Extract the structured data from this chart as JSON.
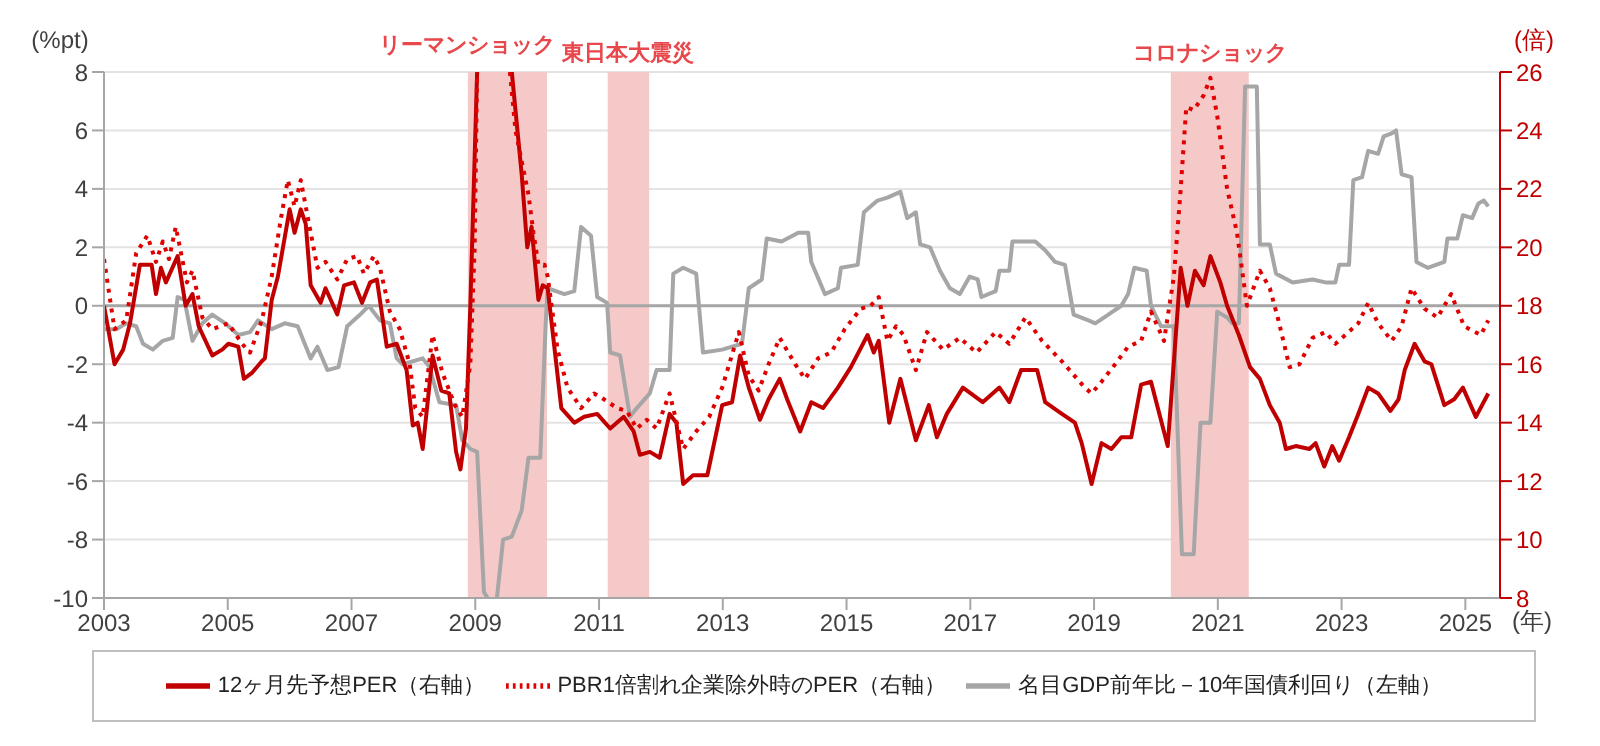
{
  "chart_data": {
    "type": "line",
    "ylabel": "(%pt)",
    "y2label": "(倍)",
    "xlabel": "(年)",
    "xlim": [
      2003,
      2025.56
    ],
    "xticks": [
      2003,
      2005,
      2007,
      2009,
      2011,
      2013,
      2015,
      2017,
      2019,
      2021,
      2023,
      2025
    ],
    "ylim": [
      -10,
      8
    ],
    "yticks": [
      -10,
      -8,
      -6,
      -4,
      -2,
      0,
      2,
      4,
      6,
      8
    ],
    "y2lim": [
      8,
      26
    ],
    "y2ticks": [
      8,
      10,
      12,
      14,
      16,
      18,
      20,
      22,
      24,
      26
    ],
    "grid": "y",
    "legend": "bottom",
    "marker": "none",
    "ref_lines": [
      {
        "axis": "y",
        "value": 0,
        "color": "#a6a6a6"
      }
    ],
    "bands": [
      {
        "axis": "x",
        "from": 2008.88,
        "to": 2010.16,
        "label": "リーマンショック",
        "color": "#f6c9c9"
      },
      {
        "axis": "x",
        "from": 2011.14,
        "to": 2011.81,
        "label": "東日本大震災",
        "color": "#f6c9c9"
      },
      {
        "axis": "x",
        "from": 2020.24,
        "to": 2021.5,
        "label": "コロナショック",
        "color": "#f6c9c9"
      }
    ],
    "series": [
      {
        "name": "名目GDP前年比－10年国債利回り（左軸）",
        "color": "#a6a6a6",
        "line_style": "solid",
        "x": [
          2003.0,
          2003.2,
          2003.36,
          2003.52,
          2003.63,
          2003.79,
          2003.95,
          2004.11,
          2004.19,
          2004.3,
          2004.43,
          2004.59,
          2004.75,
          2004.96,
          2005.17,
          2005.36,
          2005.49,
          2005.71,
          2005.92,
          2006.13,
          2006.34,
          2006.45,
          2006.61,
          2006.79,
          2006.93,
          2007.14,
          2007.28,
          2007.46,
          2007.62,
          2007.73,
          2007.83,
          2008.15,
          2008.26,
          2008.42,
          2008.69,
          2008.79,
          2008.92,
          2009.03,
          2009.14,
          2009.2,
          2009.28,
          2009.35,
          2009.45,
          2009.59,
          2009.75,
          2009.86,
          2010.05,
          2010.14,
          2010.17,
          2010.44,
          2010.6,
          2010.71,
          2010.87,
          2010.97,
          2011.13,
          2011.18,
          2011.34,
          2011.5,
          2011.61,
          2011.82,
          2011.93,
          2012.14,
          2012.2,
          2012.36,
          2012.57,
          2012.68,
          2012.99,
          2013.31,
          2013.42,
          2013.63,
          2013.71,
          2013.95,
          2014.22,
          2014.38,
          2014.43,
          2014.65,
          2014.86,
          2014.91,
          2015.18,
          2015.28,
          2015.5,
          2015.66,
          2015.87,
          2015.98,
          2016.12,
          2016.19,
          2016.35,
          2016.51,
          2016.67,
          2016.83,
          2016.99,
          2017.12,
          2017.18,
          2017.41,
          2017.47,
          2017.63,
          2017.68,
          2018.05,
          2018.21,
          2018.37,
          2018.53,
          2018.67,
          2018.91,
          2019.02,
          2019.23,
          2019.44,
          2019.55,
          2019.65,
          2019.85,
          2019.92,
          2020.08,
          2020.29,
          2020.42,
          2020.61,
          2020.72,
          2020.88,
          2020.99,
          2021.15,
          2021.23,
          2021.34,
          2021.44,
          2021.63,
          2021.68,
          2021.84,
          2021.94,
          2022.21,
          2022.53,
          2022.74,
          2022.9,
          2022.96,
          2023.12,
          2023.19,
          2023.33,
          2023.43,
          2023.59,
          2023.68,
          2023.81,
          2023.88,
          2023.97,
          2024.13,
          2024.21,
          2024.39,
          2024.66,
          2024.71,
          2024.87,
          2024.96,
          2025.11,
          2025.21,
          2025.3,
          2025.37
        ],
        "values": [
          -0.8,
          -0.8,
          -0.6,
          -0.7,
          -1.3,
          -1.5,
          -1.2,
          -1.1,
          0.3,
          0.2,
          -1.2,
          -0.6,
          -0.3,
          -0.6,
          -1.0,
          -0.9,
          -0.5,
          -0.8,
          -0.6,
          -0.7,
          -1.8,
          -1.4,
          -2.2,
          -2.1,
          -0.7,
          -0.3,
          0.0,
          -0.5,
          -0.6,
          -1.8,
          -2.0,
          -1.8,
          -2.1,
          -3.3,
          -3.4,
          -4.6,
          -4.9,
          -5.0,
          -9.8,
          -10.0,
          null,
          -10.0,
          -8.0,
          -7.9,
          -7.0,
          -5.2,
          -5.2,
          -0.5,
          0.6,
          0.4,
          0.5,
          2.7,
          2.4,
          0.3,
          0.1,
          -1.6,
          -1.7,
          -3.8,
          -3.5,
          -3.0,
          -2.2,
          -2.2,
          1.1,
          1.3,
          1.1,
          -1.6,
          -1.5,
          -1.3,
          0.6,
          0.9,
          2.3,
          2.2,
          2.5,
          2.5,
          1.5,
          0.4,
          0.6,
          1.3,
          1.4,
          3.2,
          3.6,
          3.7,
          3.9,
          3.0,
          3.2,
          2.1,
          2.0,
          1.2,
          0.6,
          0.4,
          1.0,
          0.9,
          0.3,
          0.5,
          1.2,
          1.2,
          2.2,
          2.2,
          1.9,
          1.5,
          1.4,
          -0.3,
          -0.5,
          -0.6,
          -0.3,
          0.0,
          0.4,
          1.3,
          1.2,
          0.0,
          -0.7,
          -0.7,
          -8.5,
          -8.5,
          -4.0,
          -4.0,
          -0.2,
          -0.4,
          -0.6,
          -0.6,
          7.5,
          7.5,
          2.1,
          2.1,
          1.1,
          0.8,
          0.9,
          0.8,
          0.8,
          1.4,
          1.4,
          4.3,
          4.4,
          5.3,
          5.2,
          5.8,
          5.9,
          6.0,
          4.5,
          4.4,
          1.5,
          1.3,
          1.5,
          2.3,
          2.3,
          3.1,
          3.0,
          3.5,
          3.6,
          3.4
        ]
      },
      {
        "name": "12ヶ月先予想PER（右軸）",
        "color": "#c00000",
        "line_style": "solid",
        "axis": "y2",
        "x": [
          2003.0,
          2003.17,
          2003.31,
          2003.42,
          2003.58,
          2003.77,
          2003.84,
          2003.92,
          2004.0,
          2004.19,
          2004.32,
          2004.43,
          2004.53,
          2004.75,
          2004.91,
          2005.01,
          2005.17,
          2005.26,
          2005.39,
          2005.55,
          2005.6,
          2005.71,
          2005.81,
          2006.0,
          2006.08,
          2006.18,
          2006.26,
          2006.34,
          2006.5,
          2006.58,
          2006.77,
          2006.88,
          2007.04,
          2007.17,
          2007.3,
          2007.41,
          2007.57,
          2007.73,
          2007.89,
          2007.99,
          2008.07,
          2008.15,
          2008.31,
          2008.45,
          2008.58,
          2008.69,
          2008.76,
          2008.85,
          2008.92,
          2009.03,
          2009.3,
          2009.59,
          2009.75,
          2009.84,
          2009.91,
          2010.02,
          2010.09,
          2010.17,
          2010.39,
          2010.6,
          2010.76,
          2010.97,
          2011.18,
          2011.4,
          2011.56,
          2011.66,
          2011.82,
          2011.98,
          2012.14,
          2012.25,
          2012.36,
          2012.52,
          2012.75,
          2012.99,
          2013.15,
          2013.28,
          2013.42,
          2013.6,
          2013.74,
          2013.92,
          2014.04,
          2014.25,
          2014.43,
          2014.62,
          2014.86,
          2015.07,
          2015.34,
          2015.44,
          2015.52,
          2015.69,
          2015.87,
          2016.12,
          2016.33,
          2016.46,
          2016.62,
          2016.88,
          2017.2,
          2017.47,
          2017.63,
          2017.82,
          2018.08,
          2018.21,
          2018.48,
          2018.69,
          2018.8,
          2018.96,
          2019.12,
          2019.28,
          2019.44,
          2019.6,
          2019.76,
          2019.92,
          2020.19,
          2020.4,
          2020.51,
          2020.63,
          2020.77,
          2020.88,
          2021.04,
          2021.15,
          2021.34,
          2021.52,
          2021.68,
          2021.84,
          2022.0,
          2022.1,
          2022.26,
          2022.48,
          2022.58,
          2022.72,
          2022.85,
          2022.96,
          2023.12,
          2023.27,
          2023.43,
          2023.59,
          2023.79,
          2023.92,
          2024.02,
          2024.18,
          2024.34,
          2024.45,
          2024.66,
          2024.82,
          2024.96,
          2025.17,
          2025.37
        ],
        "values": [
          18.0,
          16.0,
          16.5,
          17.4,
          19.4,
          19.4,
          18.4,
          19.3,
          18.8,
          19.7,
          18.0,
          18.4,
          17.3,
          16.3,
          16.5,
          16.7,
          16.6,
          15.5,
          15.7,
          16.1,
          16.2,
          18.2,
          19.0,
          21.3,
          20.5,
          21.3,
          20.8,
          18.7,
          18.1,
          18.6,
          17.7,
          18.7,
          18.8,
          18.1,
          18.8,
          18.9,
          16.6,
          16.7,
          15.8,
          13.9,
          14.0,
          13.1,
          16.3,
          15.1,
          15.0,
          13.0,
          12.4,
          13.8,
          18.0,
          26.0,
          null,
          26.0,
          22.5,
          20.0,
          20.7,
          18.2,
          18.7,
          18.6,
          14.5,
          14.0,
          14.2,
          14.3,
          13.8,
          14.2,
          13.7,
          12.9,
          13.0,
          12.8,
          14.3,
          14.0,
          11.9,
          12.2,
          12.2,
          14.6,
          14.7,
          16.3,
          15.2,
          14.1,
          14.8,
          15.5,
          14.8,
          13.7,
          14.7,
          14.5,
          15.2,
          15.9,
          17.0,
          16.4,
          16.8,
          14.0,
          15.5,
          13.4,
          14.6,
          13.5,
          14.3,
          15.2,
          14.7,
          15.2,
          14.7,
          15.8,
          15.8,
          14.7,
          14.3,
          14.0,
          13.3,
          11.9,
          13.3,
          13.1,
          13.5,
          13.5,
          15.3,
          15.4,
          13.2,
          19.3,
          18.0,
          19.2,
          18.7,
          19.7,
          18.8,
          18.0,
          17.0,
          15.9,
          15.5,
          14.6,
          14.0,
          13.1,
          13.2,
          13.1,
          13.3,
          12.5,
          13.2,
          12.7,
          13.5,
          14.3,
          15.2,
          15.0,
          14.4,
          14.8,
          15.8,
          16.7,
          16.1,
          16.0,
          14.6,
          14.8,
          15.2,
          14.2,
          15.0
        ]
      },
      {
        "name": "PBR1倍割れ企業除外時のPER（右軸）",
        "color": "#e00000",
        "line_style": "dotted",
        "axis": "y2",
        "x": [
          2003.0,
          2003.17,
          2003.36,
          2003.52,
          2003.7,
          2003.84,
          2003.95,
          2004.05,
          2004.16,
          2004.34,
          2004.43,
          2004.59,
          2004.75,
          2005.01,
          2005.23,
          2005.36,
          2005.55,
          2005.71,
          2005.86,
          2005.97,
          2006.08,
          2006.18,
          2006.34,
          2006.45,
          2006.58,
          2006.77,
          2006.93,
          2007.09,
          2007.2,
          2007.36,
          2007.46,
          2007.62,
          2007.78,
          2007.94,
          2008.03,
          2008.15,
          2008.31,
          2008.47,
          2008.67,
          2008.79,
          2008.92,
          2008.99,
          2009.03,
          2009.3,
          2009.56,
          2009.65,
          2009.86,
          2009.94,
          2010.02,
          2010.12,
          2010.17,
          2010.33,
          2010.49,
          2010.71,
          2010.92,
          2011.08,
          2011.29,
          2011.45,
          2011.61,
          2011.77,
          2011.93,
          2012.14,
          2012.36,
          2012.57,
          2012.78,
          2012.99,
          2013.26,
          2013.42,
          2013.58,
          2013.74,
          2013.92,
          2014.17,
          2014.33,
          2014.54,
          2014.75,
          2014.97,
          2015.23,
          2015.39,
          2015.52,
          2015.66,
          2015.8,
          2015.92,
          2016.12,
          2016.3,
          2016.56,
          2016.83,
          2017.1,
          2017.41,
          2017.63,
          2017.89,
          2018.16,
          2018.48,
          2018.85,
          2018.96,
          2019.12,
          2019.34,
          2019.55,
          2019.76,
          2019.92,
          2020.13,
          2020.29,
          2020.4,
          2020.49,
          2020.61,
          2020.77,
          2020.88,
          2020.99,
          2021.15,
          2021.31,
          2021.47,
          2021.68,
          2021.84,
          2021.98,
          2022.16,
          2022.32,
          2022.53,
          2022.74,
          2022.9,
          2023.06,
          2023.27,
          2023.43,
          2023.59,
          2023.81,
          2023.97,
          2024.13,
          2024.34,
          2024.55,
          2024.77,
          2024.98,
          2025.25,
          2025.37
        ],
        "values": [
          19.6,
          17.2,
          17.5,
          19.8,
          20.4,
          19.5,
          20.2,
          19.6,
          20.7,
          18.8,
          19.2,
          17.6,
          17.2,
          17.4,
          16.7,
          16.4,
          17.5,
          19.0,
          21.0,
          22.3,
          21.4,
          22.3,
          20.5,
          19.3,
          19.5,
          18.9,
          19.6,
          19.7,
          19.1,
          19.7,
          19.3,
          17.8,
          17.2,
          16.0,
          14.5,
          14.2,
          17.0,
          15.7,
          14.6,
          14.2,
          16.0,
          20.0,
          26.0,
          null,
          26.0,
          24.0,
          21.8,
          20.5,
          19.4,
          19.4,
          19.0,
          16.5,
          15.2,
          14.5,
          15.0,
          14.8,
          14.5,
          14.4,
          13.8,
          14.1,
          13.8,
          15.0,
          13.1,
          13.7,
          14.2,
          15.2,
          17.1,
          15.6,
          15.1,
          16.0,
          16.9,
          16.0,
          15.5,
          16.2,
          16.4,
          17.2,
          17.9,
          18.0,
          18.3,
          16.8,
          17.3,
          17.0,
          15.8,
          17.1,
          16.5,
          16.9,
          16.4,
          17.1,
          16.7,
          17.6,
          16.8,
          16.1,
          15.2,
          15.0,
          15.4,
          16.0,
          16.6,
          16.8,
          17.8,
          16.8,
          19.0,
          22.0,
          24.8,
          24.7,
          25.2,
          25.8,
          24.5,
          22.0,
          20.5,
          18.0,
          19.2,
          18.6,
          17.5,
          15.9,
          16.0,
          16.9,
          17.1,
          16.7,
          17.0,
          17.4,
          18.1,
          17.4,
          16.8,
          17.3,
          18.6,
          17.9,
          17.6,
          18.4,
          17.3,
          17.0,
          17.5
        ]
      }
    ]
  }
}
